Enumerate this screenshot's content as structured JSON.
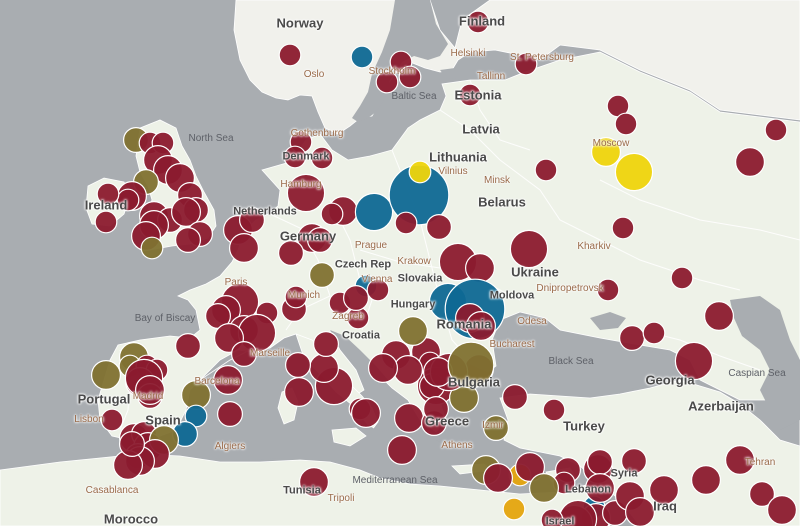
{
  "map": {
    "colors": {
      "water": "#a9adb1",
      "land": "#eef2e8",
      "land_north": "#f1f1ec",
      "border": "#ffffff",
      "label_country": "#4a4a4a",
      "label_city": "#9a6b4a",
      "label_sea": "#5e6168"
    },
    "country_labels": [
      "Norway",
      "Finland",
      "Estonia",
      "Latvia",
      "Lithuania",
      "Belarus",
      "Ireland",
      "Denmark",
      "Netherlands",
      "Germany",
      "Czech Rep",
      "Slovakia",
      "Hungary",
      "Romania",
      "Moldova",
      "Ukraine",
      "Croatia",
      "Bulgaria",
      "Greece",
      "Turkey",
      "Georgia",
      "Azerbaijan",
      "Portugal",
      "Spain",
      "Tunisia",
      "Morocco",
      "Lebanon",
      "Iraq",
      "Syria",
      "Israel"
    ],
    "city_labels": [
      "Oslo",
      "Stockholm",
      "Helsinki",
      "St. Petersburg",
      "Tallinn",
      "Gothenburg",
      "Vilnius",
      "Minsk",
      "Moscow",
      "Kharkiv",
      "Hamburg",
      "Prague",
      "Krakow",
      "Vienna",
      "Paris",
      "Munich",
      "Marseille",
      "Zagreb",
      "Bucharest",
      "Odesa",
      "Dnipropetrovsk",
      "Madrid",
      "Barcelona",
      "Lisbon",
      "Algiers",
      "Casablanca",
      "Tripoli",
      "Izmir",
      "Athens",
      "Tehran"
    ],
    "sea_labels": [
      "North Sea",
      "Baltic Sea",
      "Bay of Biscay",
      "Black Sea",
      "Caspian Sea",
      "Mediterranean Sea"
    ],
    "legend_colors": {
      "red": "#8b1a2e",
      "olive": "#7f7130",
      "blue": "#0e6894",
      "yellow": "#eed40c",
      "orange": "#e4a40e"
    },
    "markers": [
      {
        "category": "red",
        "size": 0.17
      },
      {
        "category": "red",
        "size": 0.17
      },
      {
        "category": "blue",
        "size": 0.17
      },
      {
        "category": "red",
        "size": 0.17
      },
      {
        "category": "red",
        "size": 0.17
      },
      {
        "category": "red",
        "size": 0.17
      },
      {
        "category": "red",
        "size": 0.17
      },
      {
        "category": "red",
        "size": 0.17
      },
      {
        "category": "red",
        "size": 0.17
      },
      {
        "category": "red",
        "size": 0.17
      },
      {
        "category": "red",
        "size": 0.17
      },
      {
        "category": "red",
        "size": 0.17
      },
      {
        "category": "red",
        "size": 0.17
      },
      {
        "category": "red",
        "size": 0.17
      },
      {
        "category": "yellow",
        "size": 0.3
      },
      {
        "category": "yellow",
        "size": 0.45
      },
      {
        "category": "red",
        "size": 0.17
      },
      {
        "category": "red",
        "size": 0.3
      },
      {
        "category": "olive",
        "size": 0.23
      },
      {
        "category": "red",
        "size": 0.17
      },
      {
        "category": "red",
        "size": 0.17
      },
      {
        "category": "red",
        "size": 0.3
      },
      {
        "category": "red",
        "size": 0.3
      },
      {
        "category": "olive",
        "size": 0.23
      },
      {
        "category": "red",
        "size": 0.3
      },
      {
        "category": "red",
        "size": 0.3
      },
      {
        "category": "red",
        "size": 0.23
      },
      {
        "category": "red",
        "size": 0.17
      },
      {
        "category": "red",
        "size": 0.23
      },
      {
        "category": "red",
        "size": 0.3
      },
      {
        "category": "red",
        "size": 0.23
      },
      {
        "category": "red",
        "size": 0.17
      },
      {
        "category": "red",
        "size": 0.3
      },
      {
        "category": "red",
        "size": 0.17
      },
      {
        "category": "red",
        "size": 0.3
      },
      {
        "category": "red",
        "size": 0.3
      },
      {
        "category": "red",
        "size": 0.23
      },
      {
        "category": "red",
        "size": 0.23
      },
      {
        "category": "red",
        "size": 0.3
      },
      {
        "category": "red",
        "size": 0.3
      },
      {
        "category": "red",
        "size": 0.23
      },
      {
        "category": "olive",
        "size": 0.17
      },
      {
        "category": "red",
        "size": 0.45
      },
      {
        "category": "red",
        "size": 0.3
      },
      {
        "category": "red",
        "size": 0.17
      },
      {
        "category": "blue",
        "size": 0.45
      },
      {
        "category": "blue",
        "size": 0.85
      },
      {
        "category": "yellow",
        "size": 0.17
      },
      {
        "category": "red",
        "size": 0.17
      },
      {
        "category": "red",
        "size": 0.3
      },
      {
        "category": "red",
        "size": 0.23
      },
      {
        "category": "red",
        "size": 0.23
      },
      {
        "category": "red",
        "size": 0.45
      },
      {
        "category": "red",
        "size": 0.3
      },
      {
        "category": "red",
        "size": 0.45
      },
      {
        "category": "red",
        "size": 0.23
      },
      {
        "category": "red",
        "size": 0.17
      },
      {
        "category": "olive",
        "size": 0.23
      },
      {
        "category": "red",
        "size": 0.45
      },
      {
        "category": "red",
        "size": 0.3
      },
      {
        "category": "red",
        "size": 0.23
      },
      {
        "category": "red",
        "size": 0.17
      },
      {
        "category": "red",
        "size": 0.23
      },
      {
        "category": "red",
        "size": 0.17
      },
      {
        "category": "red",
        "size": 0.3
      },
      {
        "category": "red",
        "size": 0.45
      },
      {
        "category": "red",
        "size": 0.3
      },
      {
        "category": "blue",
        "size": 0.17
      },
      {
        "category": "red",
        "size": 0.17
      },
      {
        "category": "red",
        "size": 0.17
      },
      {
        "category": "red",
        "size": 0.23
      },
      {
        "category": "red",
        "size": 0.17
      },
      {
        "category": "red",
        "size": 0.23
      },
      {
        "category": "red",
        "size": 0.23
      },
      {
        "category": "blue",
        "size": 0.45
      },
      {
        "category": "blue",
        "size": 0.85
      },
      {
        "category": "red",
        "size": 0.3
      },
      {
        "category": "red",
        "size": 0.3
      },
      {
        "category": "red",
        "size": 0.17
      },
      {
        "category": "red",
        "size": 0.17
      },
      {
        "category": "red",
        "size": 0.3
      },
      {
        "category": "red",
        "size": 0.23
      },
      {
        "category": "red",
        "size": 0.17
      },
      {
        "category": "red",
        "size": 0.45
      },
      {
        "category": "red",
        "size": 0.45
      },
      {
        "category": "red",
        "size": 0.3
      },
      {
        "category": "red",
        "size": 0.23
      },
      {
        "category": "red",
        "size": 0.3
      },
      {
        "category": "red",
        "size": 0.3
      },
      {
        "category": "red",
        "size": 0.17
      },
      {
        "category": "red",
        "size": 0.23
      },
      {
        "category": "red",
        "size": 0.3
      },
      {
        "category": "red",
        "size": 0.23
      },
      {
        "category": "olive",
        "size": 0.3
      },
      {
        "category": "olive",
        "size": 0.17
      },
      {
        "category": "olive",
        "size": 0.3
      },
      {
        "category": "red",
        "size": 0.17
      },
      {
        "category": "red",
        "size": 0.17
      },
      {
        "category": "red",
        "size": 0.3
      },
      {
        "category": "red",
        "size": 0.17
      },
      {
        "category": "red",
        "size": 0.45
      },
      {
        "category": "red",
        "size": 0.3
      },
      {
        "category": "red",
        "size": 0.23
      },
      {
        "category": "red",
        "size": 0.3
      },
      {
        "category": "olive",
        "size": 0.3
      },
      {
        "category": "olive",
        "size": 0.3
      },
      {
        "category": "blue",
        "size": 0.17
      },
      {
        "category": "red",
        "size": 0.45
      },
      {
        "category": "red",
        "size": 0.3
      },
      {
        "category": "olive",
        "size": 0.3
      },
      {
        "category": "blue",
        "size": 0.23
      },
      {
        "category": "red",
        "size": 0.3
      },
      {
        "category": "red",
        "size": 0.23
      },
      {
        "category": "red",
        "size": 0.3
      },
      {
        "category": "olive",
        "size": 0.3
      },
      {
        "category": "red",
        "size": 0.23
      },
      {
        "category": "red",
        "size": 0.3
      },
      {
        "category": "red",
        "size": 0.3
      },
      {
        "category": "red",
        "size": 0.3
      },
      {
        "category": "red",
        "size": 0.23
      },
      {
        "category": "red",
        "size": 0.3
      },
      {
        "category": "red",
        "size": 0.17
      },
      {
        "category": "red",
        "size": 0.3
      },
      {
        "category": "red",
        "size": 0.23
      },
      {
        "category": "red",
        "size": 0.3
      },
      {
        "category": "red",
        "size": 0.23
      },
      {
        "category": "red",
        "size": 0.17
      },
      {
        "category": "red",
        "size": 0.3
      },
      {
        "category": "red",
        "size": 0.3
      },
      {
        "category": "red",
        "size": 0.23
      },
      {
        "category": "red",
        "size": 0.23
      },
      {
        "category": "red",
        "size": 0.3
      },
      {
        "category": "red",
        "size": 0.45
      },
      {
        "category": "red",
        "size": 0.3
      },
      {
        "category": "olive",
        "size": 0.6
      },
      {
        "category": "red",
        "size": 0.23
      },
      {
        "category": "red",
        "size": 0.3
      },
      {
        "category": "blue",
        "size": 0.17
      },
      {
        "category": "red",
        "size": 0.3
      },
      {
        "category": "red",
        "size": 0.23
      },
      {
        "category": "red",
        "size": 0.23
      },
      {
        "category": "red",
        "size": 0.23
      },
      {
        "category": "red",
        "size": 0.45
      },
      {
        "category": "red",
        "size": 0.45
      },
      {
        "category": "red",
        "size": 0.17
      },
      {
        "category": "orange",
        "size": 0.17
      },
      {
        "category": "olive",
        "size": 0.23
      },
      {
        "category": "olive",
        "size": 0.3
      },
      {
        "category": "orange",
        "size": 0.17
      },
      {
        "category": "red",
        "size": 0.17
      },
      {
        "category": "red",
        "size": 0.3
      },
      {
        "category": "red",
        "size": 0.3
      },
      {
        "category": "olive",
        "size": 0.3
      },
      {
        "category": "red",
        "size": 0.3
      },
      {
        "category": "red",
        "size": 0.3
      },
      {
        "category": "red",
        "size": 0.3
      },
      {
        "category": "red",
        "size": 0.3
      },
      {
        "category": "red",
        "size": 0.3
      },
      {
        "category": "red",
        "size": 0.23
      },
      {
        "category": "red",
        "size": 0.3
      },
      {
        "category": "red",
        "size": 0.3
      }
    ]
  }
}
